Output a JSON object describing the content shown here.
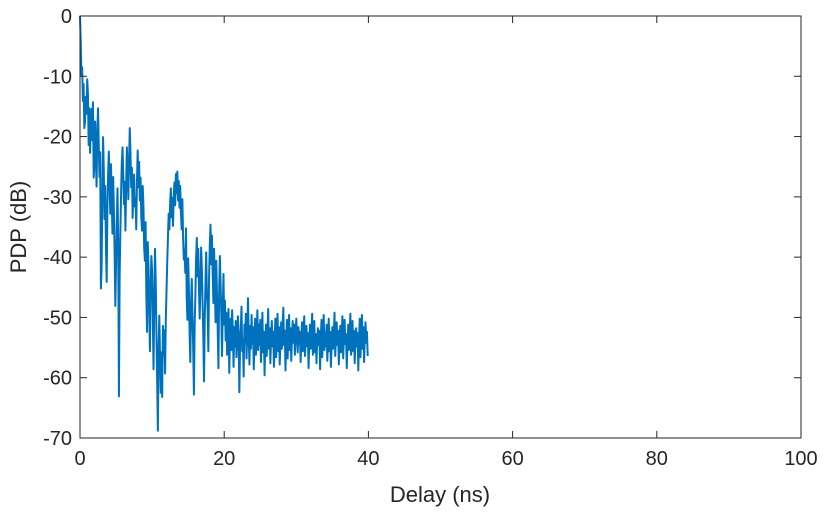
{
  "chart_data": {
    "type": "line",
    "title": "",
    "xlabel": "Delay (ns)",
    "ylabel": "PDP (dB)",
    "xlim": [
      0,
      100
    ],
    "ylim": [
      -70,
      0
    ],
    "xticks": [
      0,
      20,
      40,
      60,
      80,
      100
    ],
    "yticks": [
      0,
      -10,
      -20,
      -30,
      -40,
      -50,
      -60,
      -70
    ],
    "xtick_labels": [
      "0",
      "20",
      "40",
      "60",
      "80",
      "100"
    ],
    "ytick_labels": [
      "0",
      "-10",
      "-20",
      "-30",
      "-40",
      "-50",
      "-60",
      "-70"
    ],
    "grid": false,
    "box": true,
    "line_color": "#0072BD",
    "series": [
      {
        "x_start": 0,
        "x_step": 0.1,
        "values": [
          0,
          -4.2,
          -9.8,
          -8.5,
          -14.1,
          -11.3,
          -18.6,
          -17.5,
          -13.4,
          -16.2,
          -10.5,
          -12.8,
          -21.4,
          -15.3,
          -22.7,
          -17.1,
          -15.4,
          -20.6,
          -14.3,
          -26.8,
          -24.3,
          -17.5,
          -23.4,
          -28.3,
          -19.2,
          -15.3,
          -21.4,
          -26.7,
          -22.6,
          -45.2,
          -41.6,
          -29.4,
          -20.1,
          -25.6,
          -33.7,
          -28.2,
          -38.4,
          -44.1,
          -31.7,
          -26.3,
          -22.5,
          -27.3,
          -32.8,
          -24.6,
          -30.4,
          -36.1,
          -26.7,
          -32.2,
          -39.2,
          -48.1,
          -41.4,
          -34.2,
          -28.6,
          -37.8,
          -63.1,
          -42.8,
          -35.7,
          -29.3,
          -24.2,
          -21.8,
          -26.4,
          -31.2,
          -27.5,
          -35.6,
          -28.4,
          -21.8,
          -25.3,
          -30.4,
          -24.7,
          -18.6,
          -22.6,
          -28.4,
          -25.2,
          -33.5,
          -29.4,
          -26.3,
          -31.6,
          -30.2,
          -35.4,
          -27.5,
          -22.3,
          -28.4,
          -24.2,
          -30.6,
          -26.8,
          -33.4,
          -35.6,
          -28.2,
          -31.5,
          -38.4,
          -40.6,
          -34.2,
          -46.2,
          -52.4,
          -37.5,
          -41.7,
          -48.4,
          -55.6,
          -44.7,
          -39.8,
          -42.4,
          -50.3,
          -58.6,
          -47.1,
          -38.6,
          -43.8,
          -52.6,
          -60.4,
          -68.8,
          -55.2,
          -49.7,
          -56.4,
          -62.5,
          -55.8,
          -63.2,
          -51.4,
          -56.3,
          -52.1,
          -59.3,
          -50.4,
          -45.6,
          -40.8,
          -36.6,
          -32.8,
          -35.4,
          -31.2,
          -28.6,
          -33.4,
          -30.2,
          -34.8,
          -29.8,
          -27.6,
          -31.4,
          -26.2,
          -29.4,
          -25.8,
          -30.6,
          -27.4,
          -31.8,
          -28.2,
          -32.6,
          -35.4,
          -30.4,
          -36.8,
          -40.4,
          -38.8,
          -42.6,
          -35.2,
          -46.8,
          -50.4,
          -40.2,
          -44.8,
          -52.6,
          -57.4,
          -48.2,
          -43.6,
          -49.6,
          -55.2,
          -62.8,
          -51.4,
          -46.4,
          -40.4,
          -36.8,
          -43.2,
          -38.6,
          -45.4,
          -50.2,
          -44.6,
          -38.4,
          -41.8,
          -47.4,
          -52.8,
          -60.6,
          -50.6,
          -44.2,
          -39.2,
          -45.8,
          -48.6,
          -55.6,
          -43.4,
          -38.2,
          -34.6,
          -41.2,
          -36.4,
          -42.6,
          -47.6,
          -38.6,
          -44.8,
          -50.8,
          -40.6,
          -46.2,
          -52.2,
          -58.4,
          -45.6,
          -39.8,
          -44.4,
          -49.8,
          -56.4,
          -48.4,
          -42.8,
          -51.2,
          -47.2,
          -53.8,
          -49.2,
          -56.2,
          -52.6,
          -48.6,
          -59.2,
          -53.2,
          -50.2,
          -55.4,
          -48.8,
          -52.4,
          -58.2,
          -51.6,
          -54.8,
          -50.6,
          -56.6,
          -53.4,
          -49.8,
          -52.8,
          -62.4,
          -54.6,
          -51.8,
          -48.2,
          -55.6,
          -53.6,
          -59.8,
          -51.2,
          -54.2,
          -49.4,
          -56.8,
          -52.2,
          -46.8,
          -53.2,
          -57.8,
          -51.4,
          -55.2,
          -49.6,
          -54.4,
          -51.6,
          -58.6,
          -53.8,
          -50.2,
          -56.2,
          -52.6,
          -48.8,
          -55.4,
          -51.2,
          -54.6,
          -50.4,
          -57.4,
          -53.4,
          -49.2,
          -55.8,
          -52.4,
          -59.6,
          -54.2,
          -51.2,
          -56.4,
          -52.2,
          -48.6,
          -55.2,
          -51.8,
          -57.6,
          -53.6,
          -50.6,
          -54.8,
          -52.4,
          -58.2,
          -53.2,
          -50.2,
          -56.6,
          -52.8,
          -49.4,
          -55.6,
          -51.6,
          -57.8,
          -54.4,
          -50.8,
          -55.2,
          -51.4,
          -48.4,
          -54.6,
          -52.2,
          -58.8,
          -53.8,
          -50.4,
          -56.8,
          -52.6,
          -49.6,
          -55.4,
          -51.8,
          -57.2,
          -53.4,
          -50.6,
          -54.2,
          -51.2,
          -56.2,
          -52.8,
          -50.2,
          -53.6,
          -55.8,
          -51.6,
          -54.4,
          -52.4,
          -57.4,
          -53.2,
          -50.8,
          -55.6,
          -52.2,
          -49.8,
          -56.4,
          -53.8,
          -51.4,
          -54.8,
          -52.6,
          -58.4,
          -54.2,
          -51.2,
          -55.2,
          -52.4,
          -49.4,
          -56.2,
          -53.4,
          -50.6,
          -55.8,
          -52.8,
          -57.6,
          -53.6,
          -51.8,
          -54.6,
          -52.2,
          -58.6,
          -53.2,
          -50.4,
          -56.6,
          -52.6,
          -49.6,
          -55.4,
          -52.4,
          -54.8,
          -51.2,
          -57.2,
          -53.8,
          -50.2,
          -55.6,
          -52.4,
          -58.2,
          -54.4,
          -51.6,
          -55.2,
          -52.8,
          -49.2,
          -56.4,
          -53.4,
          -50.8,
          -54.6,
          -52.2,
          -57.8,
          -53.6,
          -51.4,
          -55.8,
          -52.6,
          -49.8,
          -56.8,
          -53.2,
          -50.4,
          -54.4,
          -52.8,
          -58.4,
          -54.2,
          -51.2,
          -55.4,
          -52.4,
          -49.4,
          -56.2,
          -53.6,
          -50.6,
          -55.6,
          -52.2,
          -57.6,
          -53.8,
          -51.8,
          -54.8,
          -52.6,
          -58.8,
          -53.4,
          -50.2,
          -56.6,
          -52.8,
          -49.6,
          -55.2,
          -51.6,
          -57.4,
          -53.2,
          -50.8,
          -54.2,
          -52.4,
          -56.4
        ]
      }
    ]
  }
}
